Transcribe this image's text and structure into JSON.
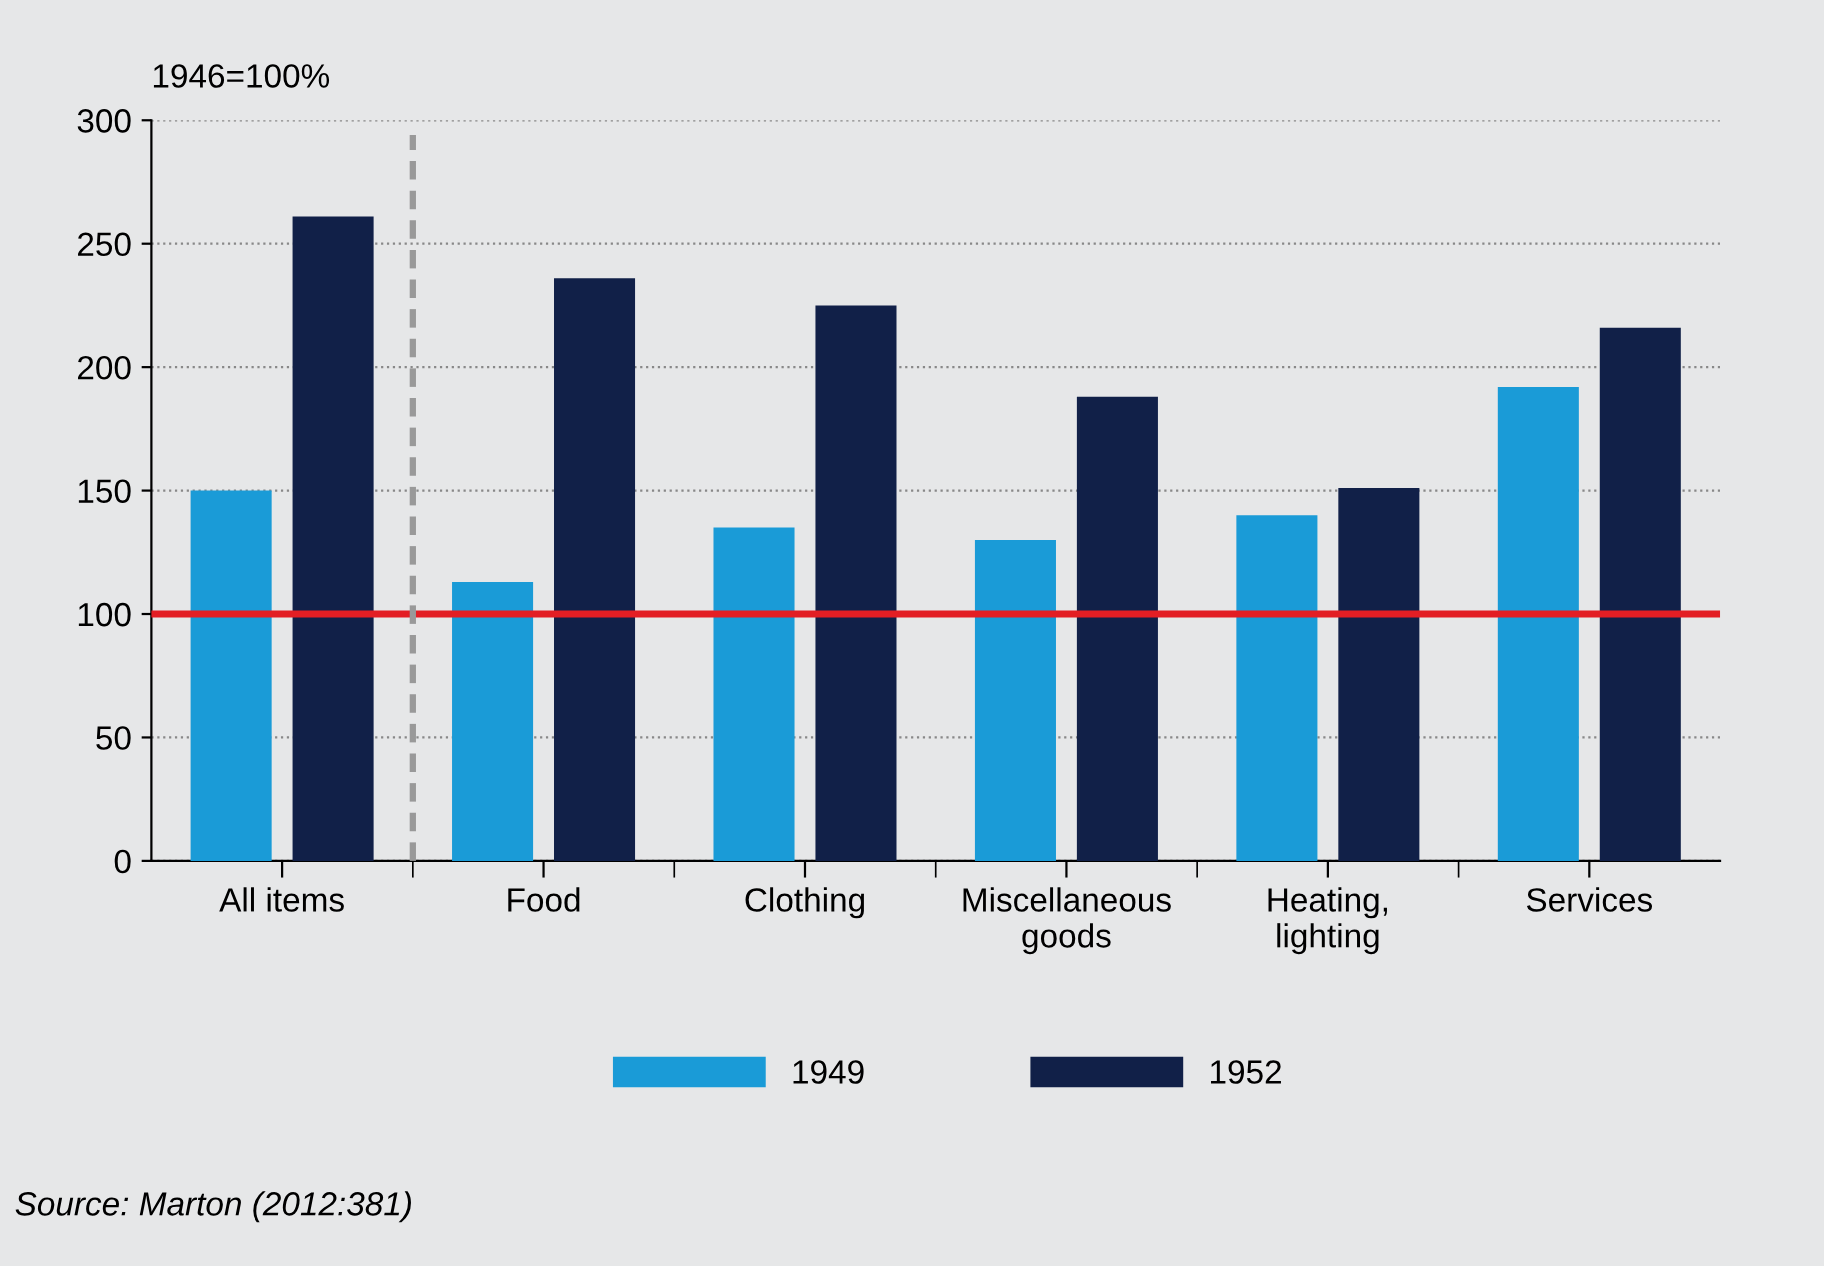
{
  "chart_data": {
    "type": "bar",
    "ylabel": "1946=100%",
    "categories": [
      "All items",
      "Food",
      "Clothing",
      "Miscellaneous\ngoods",
      "Heating,\nlighting",
      "Services"
    ],
    "series": [
      {
        "name": "1949",
        "color": "#1a9bd7",
        "values": [
          150,
          113,
          135,
          130,
          140,
          192
        ]
      },
      {
        "name": "1952",
        "color": "#112048",
        "values": [
          261,
          236,
          225,
          188,
          151,
          216
        ]
      }
    ],
    "ylim": [
      0,
      300
    ],
    "yticks": [
      0,
      50,
      100,
      150,
      200,
      250,
      300
    ],
    "grid": "y",
    "legend": "bottom",
    "ref_lines": [
      {
        "axis": "y",
        "value": 100,
        "color": "#e31e24",
        "line_style": "solid"
      }
    ],
    "annotations": [
      "Source: Marton (2012:381)"
    ]
  }
}
